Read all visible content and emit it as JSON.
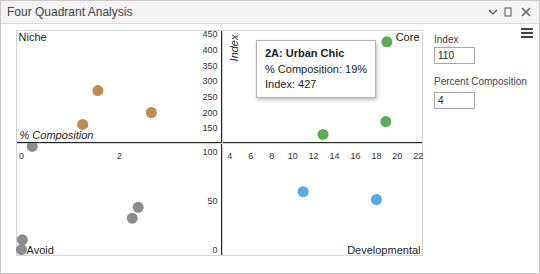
{
  "window": {
    "title": "Four Quadrant Analysis",
    "fields": [
      {
        "label": "Index",
        "value": 110
      },
      {
        "label": "Percent Composition",
        "value": 4
      }
    ]
  },
  "chart_data": [
    {
      "type": "scatter",
      "title": "Niche",
      "x_label": "% Composition",
      "xlim": [
        -0.1,
        4.1
      ],
      "ylim": [
        102,
        463
      ],
      "yticks": [
        150,
        200,
        250,
        300,
        350,
        400,
        450
      ],
      "tick_labels": "y",
      "series": [
        {
          "color": "#c08a50",
          "x": [
            1.56,
            1.25,
            2.65
          ],
          "values": [
            271,
            163,
            201
          ]
        }
      ]
    },
    {
      "type": "scatter",
      "title": "Core",
      "y_label": "Index",
      "xlim": [
        3.3,
        22.4
      ],
      "ylim": [
        102,
        463
      ],
      "tick_labels": false,
      "series": [
        {
          "color": "#5cab58",
          "x": [
            19,
            12.9,
            18.9
          ],
          "values": [
            427,
            131,
            172
          ]
        }
      ],
      "annotations": [
        {
          "title": "2A: Urban Chic",
          "lines": [
            "% Composition: 19%",
            "Index: 427"
          ]
        }
      ]
    },
    {
      "type": "scatter",
      "title": "Avoid",
      "xlim": [
        -0.1,
        4.1
      ],
      "ylim": [
        -5,
        109
      ],
      "xticks": [
        0,
        2
      ],
      "yticks": [
        0,
        50,
        100
      ],
      "tick_labels": true,
      "series": [
        {
          "color": "#8c8c8c",
          "x": [
            2.26,
            2.38,
            0.02,
            0,
            0.22
          ],
          "values": [
            33,
            44,
            11,
            1,
            106
          ]
        }
      ]
    },
    {
      "type": "scatter",
      "title": "Developmental",
      "xlim": [
        3.3,
        22.4
      ],
      "ylim": [
        -5,
        109
      ],
      "xticks": [
        4,
        6,
        8,
        10,
        12,
        14,
        16,
        18,
        20,
        22
      ],
      "tick_labels": "x",
      "series": [
        {
          "color": "#5ba8e3",
          "x": [
            11,
            18
          ],
          "values": [
            60,
            52
          ]
        }
      ]
    }
  ]
}
